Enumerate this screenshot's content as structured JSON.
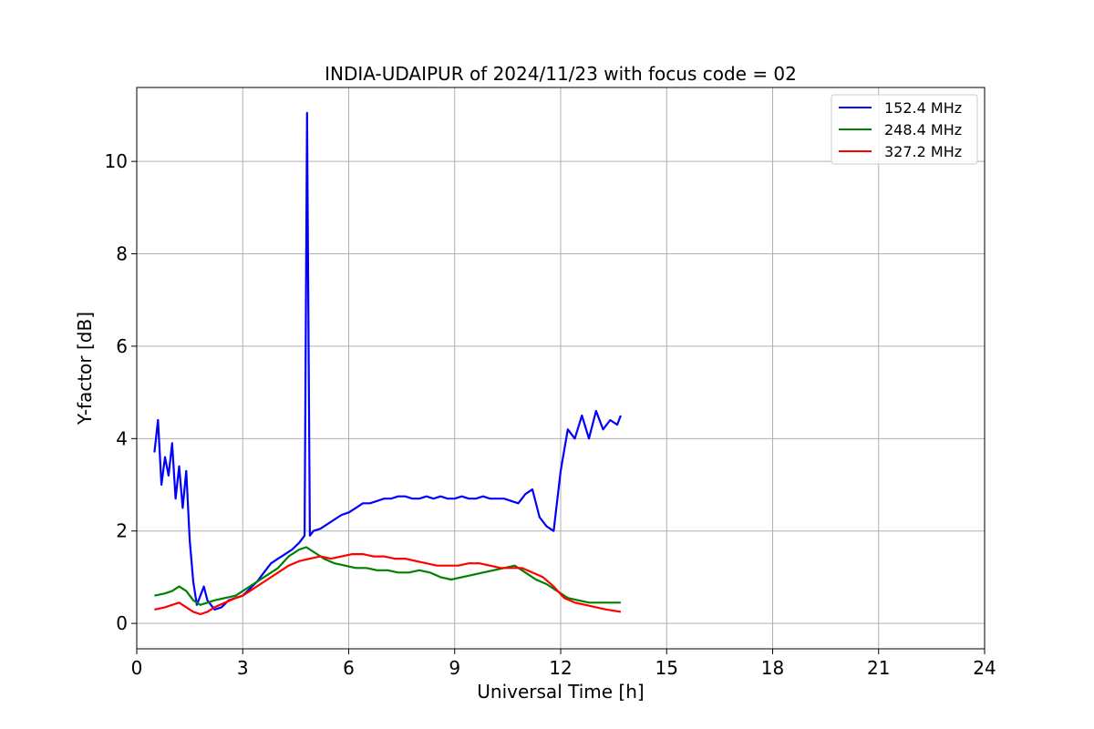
{
  "chart_data": {
    "type": "line",
    "title": "INDIA-UDAIPUR of 2024/11/23 with focus code = 02",
    "xlabel": "Universal Time [h]",
    "ylabel": "Y-factor [dB]",
    "xlim": [
      0,
      24
    ],
    "ylim": [
      -0.55,
      11.6
    ],
    "xticks": [
      0,
      3,
      6,
      9,
      12,
      15,
      18,
      21,
      24
    ],
    "yticks": [
      0,
      2,
      4,
      6,
      8,
      10
    ],
    "grid": true,
    "legend_position": "top-right",
    "series": [
      {
        "name": "152.4 MHz",
        "color": "#0000ff",
        "x": [
          0.5,
          0.6,
          0.7,
          0.8,
          0.9,
          1.0,
          1.1,
          1.2,
          1.3,
          1.4,
          1.5,
          1.6,
          1.7,
          1.8,
          1.9,
          2.0,
          2.2,
          2.4,
          2.6,
          2.8,
          3.0,
          3.2,
          3.4,
          3.6,
          3.8,
          4.0,
          4.2,
          4.4,
          4.6,
          4.75,
          4.82,
          4.9,
          5.0,
          5.2,
          5.4,
          5.6,
          5.8,
          6.0,
          6.2,
          6.4,
          6.6,
          6.8,
          7.0,
          7.2,
          7.4,
          7.6,
          7.8,
          8.0,
          8.2,
          8.4,
          8.6,
          8.8,
          9.0,
          9.2,
          9.4,
          9.6,
          9.8,
          10.0,
          10.2,
          10.4,
          10.6,
          10.8,
          11.0,
          11.2,
          11.4,
          11.6,
          11.8,
          12.0,
          12.2,
          12.4,
          12.6,
          12.8,
          13.0,
          13.2,
          13.4,
          13.6,
          13.7
        ],
        "y": [
          3.7,
          4.4,
          3.0,
          3.6,
          3.2,
          3.9,
          2.7,
          3.4,
          2.5,
          3.3,
          1.8,
          0.9,
          0.4,
          0.6,
          0.8,
          0.5,
          0.3,
          0.35,
          0.5,
          0.55,
          0.6,
          0.75,
          0.9,
          1.1,
          1.3,
          1.4,
          1.5,
          1.6,
          1.75,
          1.9,
          11.05,
          1.9,
          2.0,
          2.05,
          2.15,
          2.25,
          2.35,
          2.4,
          2.5,
          2.6,
          2.6,
          2.65,
          2.7,
          2.7,
          2.75,
          2.75,
          2.7,
          2.7,
          2.75,
          2.7,
          2.75,
          2.7,
          2.7,
          2.75,
          2.7,
          2.7,
          2.75,
          2.7,
          2.7,
          2.7,
          2.65,
          2.6,
          2.8,
          2.9,
          2.3,
          2.1,
          2.0,
          3.3,
          4.2,
          4.0,
          4.5,
          4.0,
          4.6,
          4.2,
          4.4,
          4.3,
          4.5
        ]
      },
      {
        "name": "248.4 MHz",
        "color": "#008000",
        "x": [
          0.5,
          0.8,
          1.0,
          1.2,
          1.4,
          1.6,
          1.8,
          2.0,
          2.2,
          2.5,
          2.8,
          3.0,
          3.3,
          3.6,
          4.0,
          4.3,
          4.6,
          4.8,
          5.0,
          5.3,
          5.6,
          5.9,
          6.2,
          6.5,
          6.8,
          7.1,
          7.4,
          7.7,
          8.0,
          8.3,
          8.6,
          8.9,
          9.2,
          9.5,
          9.8,
          10.1,
          10.4,
          10.7,
          11.0,
          11.3,
          11.6,
          11.9,
          12.2,
          12.5,
          12.8,
          13.1,
          13.4,
          13.7
        ],
        "y": [
          0.6,
          0.65,
          0.7,
          0.8,
          0.7,
          0.5,
          0.4,
          0.45,
          0.5,
          0.55,
          0.6,
          0.7,
          0.85,
          1.0,
          1.2,
          1.45,
          1.6,
          1.65,
          1.55,
          1.4,
          1.3,
          1.25,
          1.2,
          1.2,
          1.15,
          1.15,
          1.1,
          1.1,
          1.15,
          1.1,
          1.0,
          0.95,
          1.0,
          1.05,
          1.1,
          1.15,
          1.2,
          1.25,
          1.1,
          0.95,
          0.85,
          0.7,
          0.55,
          0.5,
          0.45,
          0.45,
          0.45,
          0.45
        ]
      },
      {
        "name": "327.2 MHz",
        "color": "#ff0000",
        "x": [
          0.5,
          0.8,
          1.0,
          1.2,
          1.4,
          1.6,
          1.8,
          2.0,
          2.2,
          2.5,
          2.8,
          3.0,
          3.3,
          3.6,
          4.0,
          4.3,
          4.6,
          4.9,
          5.2,
          5.5,
          5.8,
          6.1,
          6.4,
          6.7,
          7.0,
          7.3,
          7.6,
          7.9,
          8.2,
          8.5,
          8.8,
          9.1,
          9.4,
          9.7,
          10.0,
          10.3,
          10.6,
          10.9,
          11.2,
          11.5,
          11.8,
          12.1,
          12.4,
          12.7,
          13.0,
          13.3,
          13.7
        ],
        "y": [
          0.3,
          0.35,
          0.4,
          0.45,
          0.35,
          0.25,
          0.2,
          0.25,
          0.35,
          0.45,
          0.55,
          0.6,
          0.75,
          0.9,
          1.1,
          1.25,
          1.35,
          1.4,
          1.45,
          1.4,
          1.45,
          1.5,
          1.5,
          1.45,
          1.45,
          1.4,
          1.4,
          1.35,
          1.3,
          1.25,
          1.25,
          1.25,
          1.3,
          1.3,
          1.25,
          1.2,
          1.2,
          1.2,
          1.1,
          1.0,
          0.8,
          0.55,
          0.45,
          0.4,
          0.35,
          0.3,
          0.25
        ]
      }
    ]
  }
}
